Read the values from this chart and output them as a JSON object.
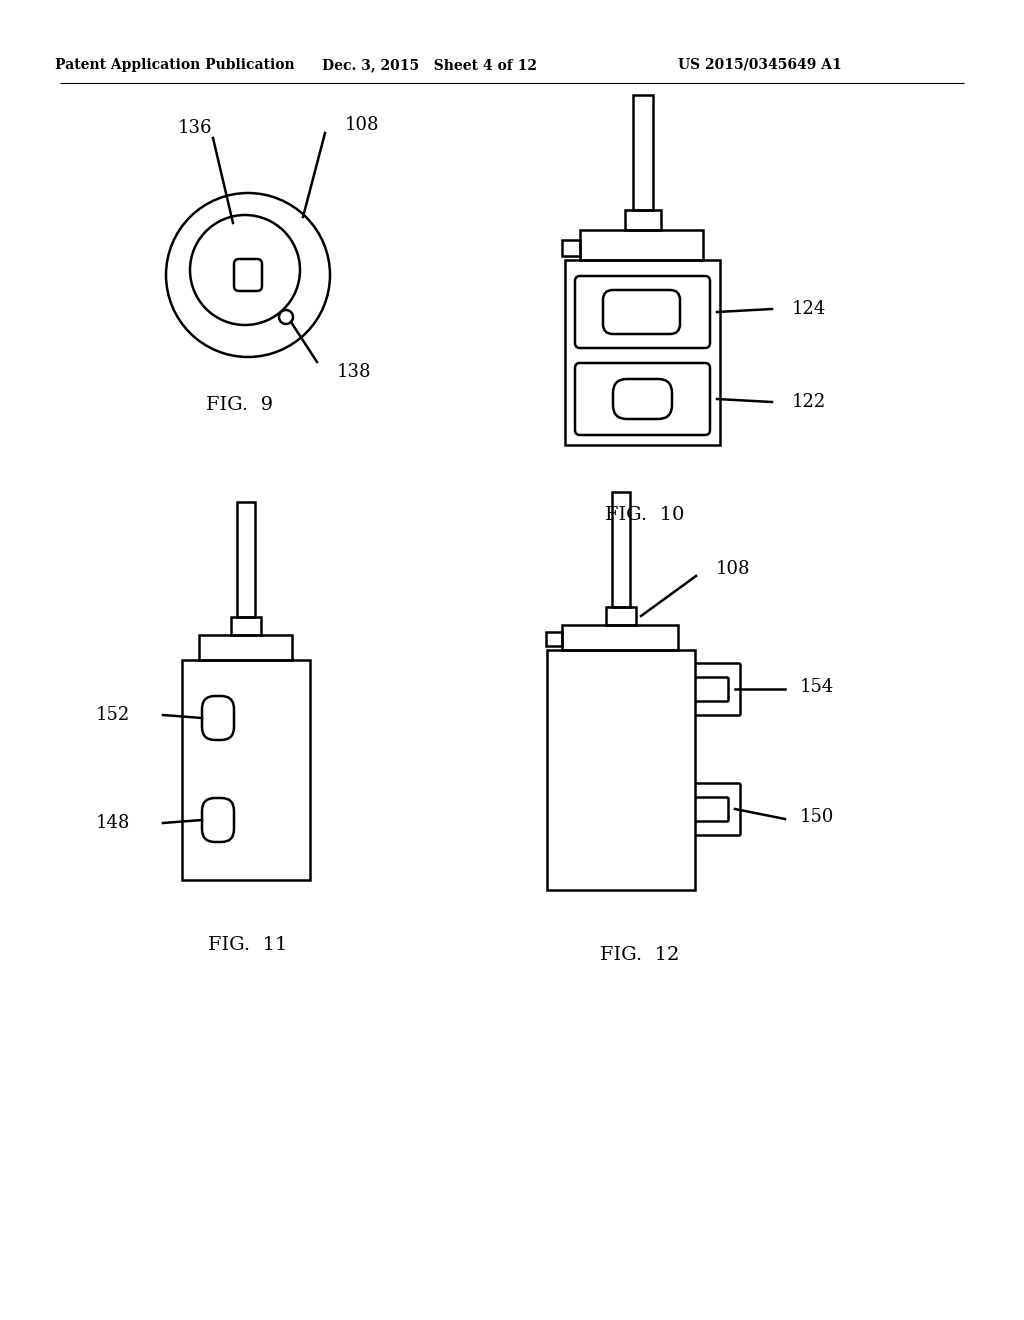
{
  "background_color": "#ffffff",
  "header_left": "Patent Application Publication",
  "header_mid": "Dec. 3, 2015   Sheet 4 of 12",
  "header_right": "US 2015/0345649 A1",
  "fig9_label": "FIG.  9",
  "fig10_label": "FIG.  10",
  "fig11_label": "FIG.  11",
  "fig12_label": "FIG.  12",
  "line_color": "#000000",
  "line_width": 1.8,
  "font_size_header": 10,
  "font_size_label": 14,
  "font_size_ref": 13
}
